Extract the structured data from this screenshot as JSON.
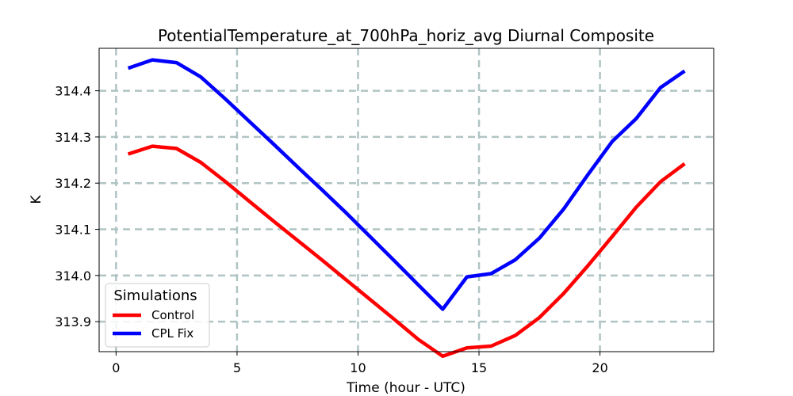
{
  "chart_data": {
    "type": "line",
    "title": "PotentialTemperature_at_700hPa_horiz_avg Diurnal Composite",
    "xlabel": "Time (hour - UTC)",
    "ylabel": "K",
    "xlim": [
      -0.7,
      24.7
    ],
    "ylim": [
      313.835,
      314.492
    ],
    "xticks": [
      0,
      5,
      10,
      15,
      20
    ],
    "xtick_labels": [
      "0",
      "5",
      "10",
      "15",
      "20"
    ],
    "yticks": [
      313.9,
      314.0,
      314.1,
      314.2,
      314.3,
      314.4
    ],
    "ytick_labels": [
      "313.9",
      "314.0",
      "314.1",
      "314.2",
      "314.3",
      "314.4"
    ],
    "grid": true,
    "legend": {
      "title": "Simulations",
      "location": "lower left"
    },
    "x": [
      0.5,
      1.5,
      2.5,
      3.5,
      4.5,
      5.5,
      6.5,
      7.5,
      8.5,
      9.5,
      10.5,
      11.5,
      12.5,
      13.5,
      14.5,
      15.5,
      16.5,
      17.5,
      18.5,
      19.5,
      20.5,
      21.5,
      22.5,
      23.5
    ],
    "series": [
      {
        "name": "Control",
        "color": "#ff0000",
        "values": [
          314.263,
          314.28,
          314.275,
          314.245,
          314.204,
          314.161,
          314.118,
          314.076,
          314.034,
          313.991,
          313.948,
          313.905,
          313.861,
          313.825,
          313.843,
          313.847,
          313.87,
          313.909,
          313.961,
          314.021,
          314.084,
          314.148,
          314.203,
          314.242
        ]
      },
      {
        "name": "CPL Fix",
        "color": "#0000ff",
        "values": [
          314.449,
          314.467,
          314.461,
          314.43,
          314.383,
          314.334,
          314.285,
          314.235,
          314.186,
          314.136,
          314.084,
          314.032,
          313.979,
          313.927,
          313.997,
          314.004,
          314.034,
          314.081,
          314.144,
          314.218,
          314.29,
          314.34,
          314.407,
          314.443
        ]
      }
    ]
  }
}
